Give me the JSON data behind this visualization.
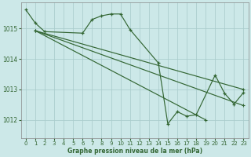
{
  "bg_color": "#cce8e8",
  "grid_color": "#aacccc",
  "line_color": "#336633",
  "xlabel": "Graphe pression niveau de la mer (hPa)",
  "yticks": [
    1012,
    1013,
    1014,
    1015
  ],
  "xticks": [
    0,
    1,
    2,
    3,
    4,
    5,
    6,
    7,
    8,
    9,
    10,
    11,
    12,
    13,
    14,
    15,
    16,
    17,
    18,
    19,
    20,
    21,
    22,
    23
  ],
  "xlim": [
    -0.5,
    23.5
  ],
  "ylim": [
    1011.4,
    1015.85
  ],
  "series_main_x": [
    0,
    1,
    2,
    6,
    7,
    8,
    9,
    10,
    11,
    14,
    15,
    16,
    17,
    18,
    20,
    21,
    22,
    23
  ],
  "series_main_y": [
    1015.62,
    1015.18,
    1014.9,
    1014.85,
    1015.3,
    1015.42,
    1015.48,
    1015.48,
    1014.97,
    1013.87,
    1011.87,
    1012.27,
    1012.12,
    1012.17,
    1013.47,
    1012.87,
    1012.52,
    1012.9
  ],
  "fan_lines": [
    {
      "x": [
        1,
        23
      ],
      "y": [
        1014.93,
        1013.0
      ]
    },
    {
      "x": [
        1,
        23
      ],
      "y": [
        1014.93,
        1012.47
      ]
    },
    {
      "x": [
        1,
        19
      ],
      "y": [
        1014.93,
        1012.0
      ]
    }
  ]
}
